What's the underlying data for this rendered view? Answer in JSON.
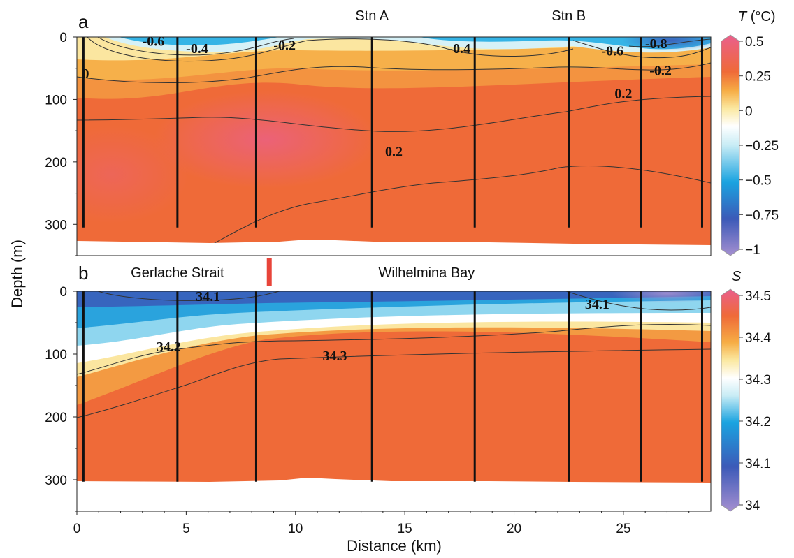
{
  "chart_data": [
    {
      "panel_label": "a",
      "type": "heatmap",
      "xlim": [
        0,
        29
      ],
      "ylim": [
        350,
        0
      ],
      "y_ticks": [
        0,
        100,
        200,
        300
      ],
      "station_labels": [
        {
          "text": "Stn A",
          "x": 13.5
        },
        {
          "text": "Stn B",
          "x": 22.5
        }
      ],
      "station_lines_x": [
        0.3,
        4.6,
        8.2,
        13.5,
        18.2,
        22.5,
        25.8,
        28.6
      ],
      "bottom_depth": 305,
      "colorbar": {
        "label_var": "T",
        "label_unit": " (°C)",
        "min": -1,
        "max": 0.5,
        "ticks": [
          {
            "value": 0.5,
            "label": "0.5"
          },
          {
            "value": 0.25,
            "label": "0.25"
          },
          {
            "value": 0,
            "label": "0"
          },
          {
            "value": -0.25,
            "label": "−0.25"
          },
          {
            "value": -0.5,
            "label": "−0.5"
          },
          {
            "value": -0.75,
            "label": "−0.75"
          },
          {
            "value": -1,
            "label": "−1"
          }
        ],
        "stops": [
          {
            "v": -1,
            "color": "#a58fd0"
          },
          {
            "v": -0.75,
            "color": "#3c5ab8"
          },
          {
            "v": -0.5,
            "color": "#1aa3e0"
          },
          {
            "v": -0.25,
            "color": "#c8ecf5"
          },
          {
            "v": -0.12,
            "color": "#ffffff"
          },
          {
            "v": 0,
            "color": "#fbe8a0"
          },
          {
            "v": 0.12,
            "color": "#f6ad45"
          },
          {
            "v": 0.25,
            "color": "#ef6a38"
          },
          {
            "v": 0.5,
            "color": "#ea5f8d"
          }
        ]
      },
      "contour_labels": [
        {
          "text": "-0.6",
          "x": 3.5,
          "y": 6
        },
        {
          "text": "-0.4",
          "x": 5.5,
          "y": 18
        },
        {
          "text": "-0.2",
          "x": 9.5,
          "y": 13
        },
        {
          "text": "0",
          "x": 0.4,
          "y": 58
        },
        {
          "text": "-0.4",
          "x": 17.5,
          "y": 18
        },
        {
          "text": "-0.6",
          "x": 24.5,
          "y": 22
        },
        {
          "text": "-0.8",
          "x": 26.5,
          "y": 10
        },
        {
          "text": "-0.2",
          "x": 26.7,
          "y": 53
        },
        {
          "text": "0.2",
          "x": 25.0,
          "y": 90
        },
        {
          "text": "0.2",
          "x": 14.5,
          "y": 183
        }
      ]
    },
    {
      "panel_label": "b",
      "type": "heatmap",
      "xlabel": "Distance (km)",
      "ylabel": "Depth (m)",
      "xlim": [
        0,
        29
      ],
      "ylim": [
        350,
        0
      ],
      "x_ticks": [
        0,
        5,
        10,
        15,
        20,
        25
      ],
      "y_ticks": [
        0,
        100,
        200,
        300
      ],
      "region_labels": [
        {
          "text": "Gerlache Strait",
          "x": 4.6
        },
        {
          "text": "Wilhelmina Bay",
          "x": 16.0
        }
      ],
      "divider_x": 8.8,
      "divider_color": "#e8443a",
      "station_lines_x": [
        0.3,
        4.6,
        8.2,
        13.5,
        18.2,
        22.5,
        25.8,
        28.6
      ],
      "bottom_depth": 303,
      "colorbar": {
        "label_var": "S",
        "min": 34,
        "max": 34.5,
        "ticks": [
          {
            "value": 34.5,
            "label": "34.5"
          },
          {
            "value": 34.4,
            "label": "34.4"
          },
          {
            "value": 34.3,
            "label": "34.3"
          },
          {
            "value": 34.2,
            "label": "34.2"
          },
          {
            "value": 34.1,
            "label": "34.1"
          },
          {
            "value": 34,
            "label": "34"
          }
        ],
        "stops": [
          {
            "v": 34.0,
            "color": "#a58fd0"
          },
          {
            "v": 34.1,
            "color": "#3c5ab8"
          },
          {
            "v": 34.2,
            "color": "#1aa3e0"
          },
          {
            "v": 34.26,
            "color": "#c8ecf5"
          },
          {
            "v": 34.3,
            "color": "#ffffff"
          },
          {
            "v": 34.34,
            "color": "#fbe8a0"
          },
          {
            "v": 34.38,
            "color": "#f6ad45"
          },
          {
            "v": 34.44,
            "color": "#ef6a38"
          },
          {
            "v": 34.5,
            "color": "#ea5f8d"
          }
        ]
      },
      "contour_labels": [
        {
          "text": "34.1",
          "x": 6.0,
          "y": 8
        },
        {
          "text": "34.2",
          "x": 4.2,
          "y": 88
        },
        {
          "text": "34.3",
          "x": 11.8,
          "y": 102
        },
        {
          "text": "34.1",
          "x": 23.8,
          "y": 20
        }
      ]
    }
  ]
}
